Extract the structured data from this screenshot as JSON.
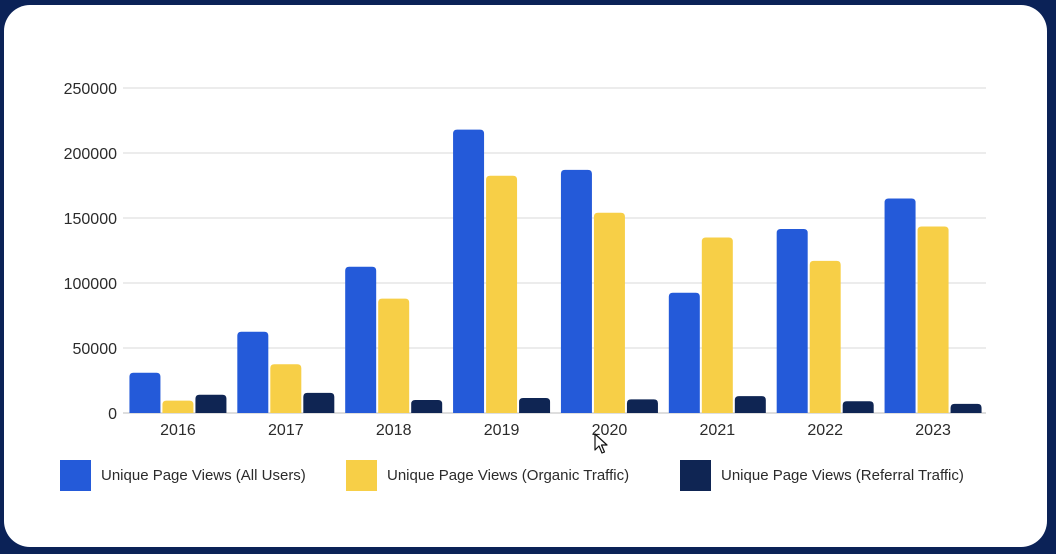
{
  "chart_data": {
    "type": "bar",
    "categories": [
      "2016",
      "2017",
      "2018",
      "2019",
      "2020",
      "2021",
      "2022",
      "2023"
    ],
    "series": [
      {
        "name": "Unique Page Views (All Users)",
        "color": "#245ad9",
        "values": [
          31000,
          62500,
          112500,
          218000,
          187000,
          92500,
          141500,
          165000
        ]
      },
      {
        "name": "Unique Page Views (Organic Traffic)",
        "color": "#f7cf47",
        "values": [
          9500,
          37500,
          88000,
          182500,
          154000,
          135000,
          117000,
          143500
        ]
      },
      {
        "name": "Unique Page Views (Referral Traffic)",
        "color": "#0f2553",
        "values": [
          14000,
          15500,
          10000,
          11500,
          10500,
          13000,
          9000,
          7000
        ]
      }
    ],
    "yticks": [
      "0",
      "50000",
      "100000",
      "150000",
      "200000",
      "250000"
    ],
    "ylim": [
      0,
      250000
    ],
    "grid": true,
    "legend": "bottom",
    "title": "",
    "xlabel": "",
    "ylabel": ""
  }
}
